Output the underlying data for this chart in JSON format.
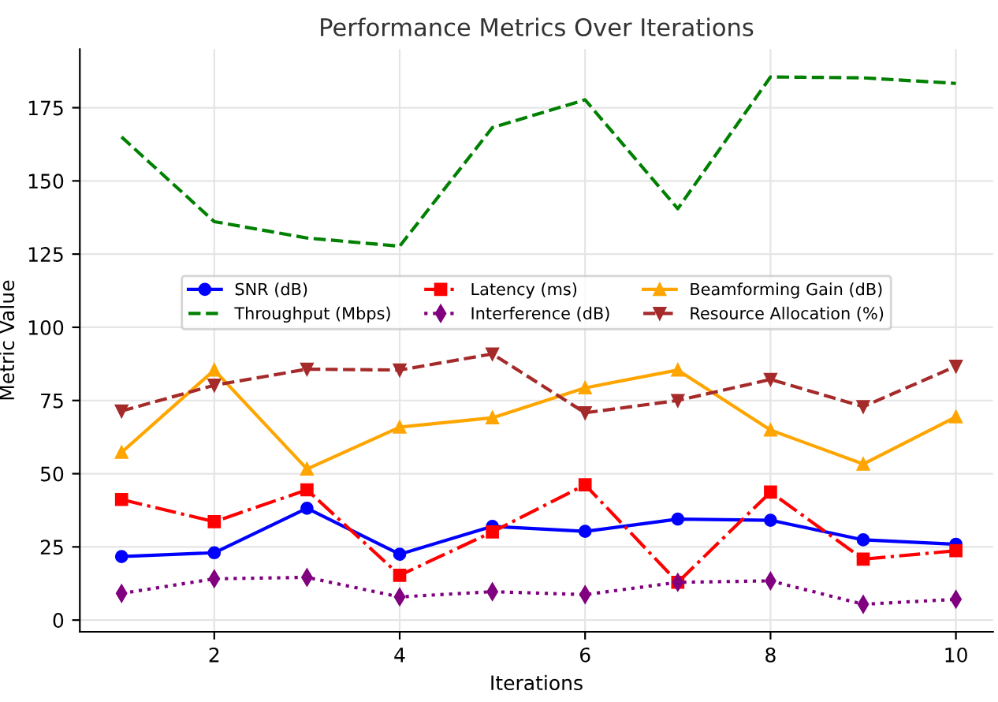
{
  "chart_data": {
    "type": "line",
    "title": "Performance Metrics Over Iterations",
    "xlabel": "Iterations",
    "ylabel": "Metric Value",
    "x": [
      1,
      2,
      3,
      4,
      5,
      6,
      7,
      8,
      9,
      10
    ],
    "series": [
      {
        "name": "SNR (dB)",
        "color": "#0000ff",
        "marker": "circle",
        "line_style": "solid",
        "values": [
          21.7,
          23,
          38.2,
          22.5,
          32,
          30.3,
          34.5,
          34.1,
          27.4,
          25.9
        ]
      },
      {
        "name": "Throughput (Mbps)",
        "color": "#008000",
        "marker": "none",
        "line_style": "dashed",
        "values": [
          165,
          136.1,
          130.5,
          127.7,
          168.2,
          177.7,
          140.5,
          185.5,
          185.2,
          183.3
        ]
      },
      {
        "name": "Latency (ms)",
        "color": "#ff0000",
        "marker": "square",
        "line_style": "dashdot",
        "values": [
          41.2,
          33.6,
          44.5,
          15.3,
          30.1,
          46.2,
          12.9,
          43.7,
          20.8,
          23.7
        ]
      },
      {
        "name": "Interference (dB)",
        "color": "#800080",
        "marker": "diamond",
        "line_style": "dotted",
        "values": [
          9.1,
          14.1,
          14.6,
          7.9,
          9.7,
          8.7,
          12.9,
          13.4,
          5.4,
          7.1
        ]
      },
      {
        "name": "Beamforming Gain (dB)",
        "color": "#ffa500",
        "marker": "triangle",
        "line_style": "solid",
        "values": [
          57.3,
          85.4,
          51.6,
          65.9,
          69.1,
          79.3,
          85.4,
          64.9,
          53.3,
          69.4
        ]
      },
      {
        "name": "Resource Allocation (%)",
        "color": "#a52a2a",
        "marker": "triangle_down",
        "line_style": "dashed",
        "values": [
          71.4,
          80.2,
          85.7,
          85.4,
          90.9,
          70.8,
          75,
          82.2,
          72.9,
          86.7
        ]
      }
    ],
    "xlim": [
      0.55,
      10.4
    ],
    "ylim": [
      -4,
      195
    ],
    "xticks": [
      2,
      4,
      6,
      8,
      10
    ],
    "yticks": [
      0,
      25,
      50,
      75,
      100,
      125,
      150,
      175
    ],
    "grid": true,
    "legend": "center"
  }
}
